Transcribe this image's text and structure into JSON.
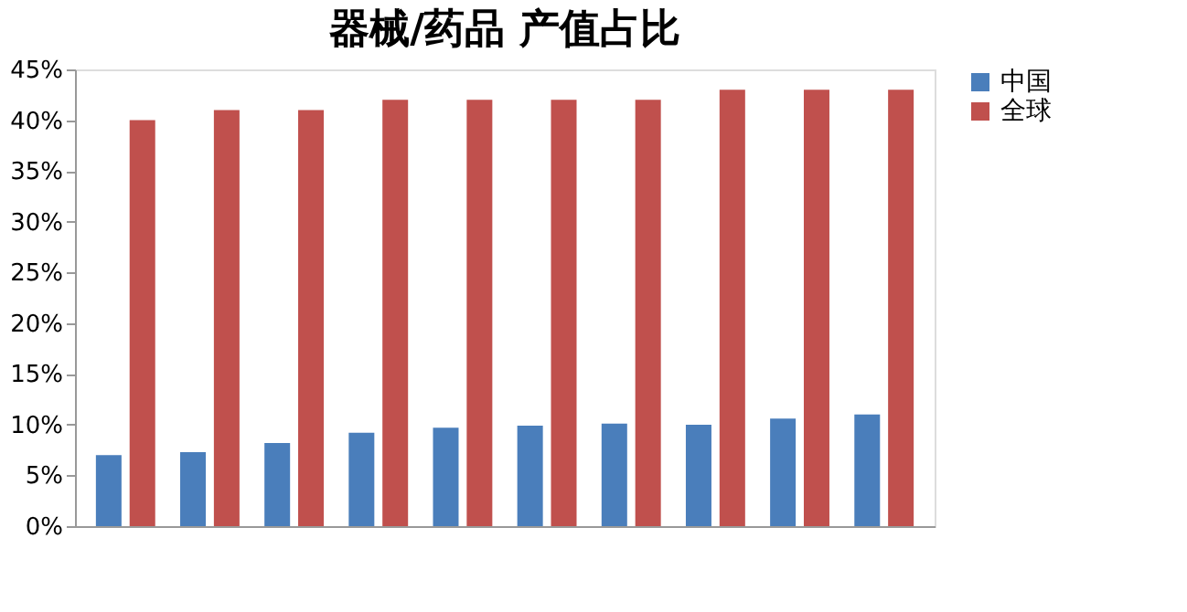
{
  "chart_data": {
    "type": "bar",
    "title": "器械/药品 产值占比",
    "categories": [
      null,
      null,
      null,
      null,
      null,
      null,
      null,
      null,
      null,
      null
    ],
    "series": [
      {
        "name": "中国",
        "color": "#4a7ebb",
        "values": [
          7,
          7.3,
          8.2,
          9.2,
          9.7,
          9.9,
          10.1,
          10,
          10.6,
          11
        ]
      },
      {
        "name": "全球",
        "color": "#c0504d",
        "values": [
          40,
          41,
          41,
          42,
          42,
          42,
          42,
          43,
          43,
          43
        ]
      }
    ],
    "ylim": [
      0,
      45
    ],
    "yticks": [
      {
        "value": 0,
        "label": "0%"
      },
      {
        "value": 5,
        "label": "5%"
      },
      {
        "value": 10,
        "label": "10%"
      },
      {
        "value": 15,
        "label": "15%"
      },
      {
        "value": 20,
        "label": "20%"
      },
      {
        "value": 25,
        "label": "25%"
      },
      {
        "value": 30,
        "label": "30%"
      },
      {
        "value": 35,
        "label": "35%"
      },
      {
        "value": 40,
        "label": "40%"
      },
      {
        "value": 45,
        "label": "45%"
      }
    ],
    "grid": false,
    "legend": "right",
    "tick_labels": "y"
  }
}
